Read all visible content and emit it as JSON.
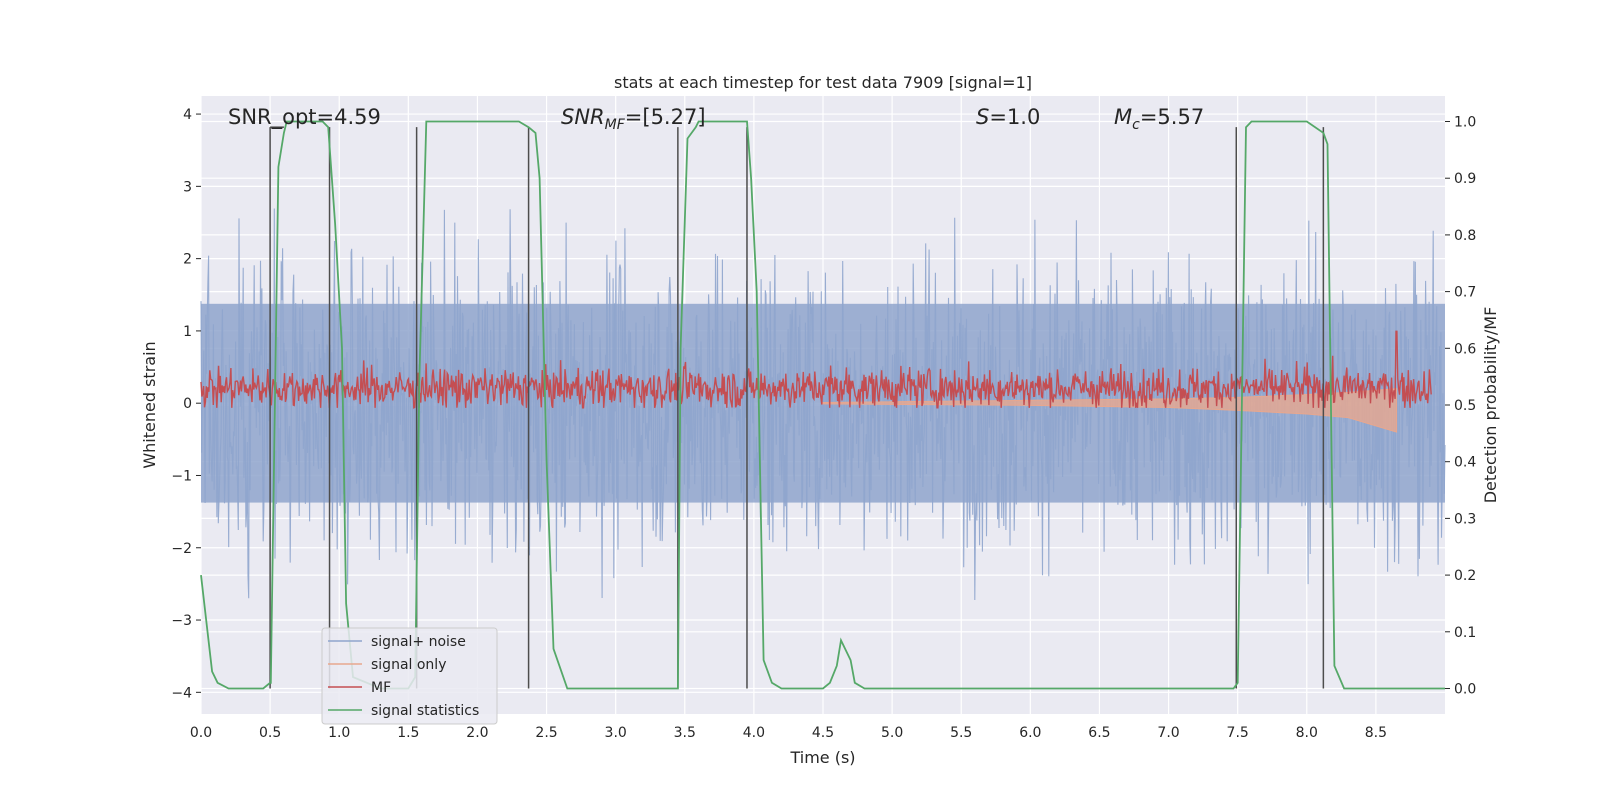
{
  "chart_data": {
    "type": "line",
    "title": "stats at each timestep for test data 7909 [signal=1]",
    "xlabel": "Time (s)",
    "ylabel_left": "Whitened strain",
    "ylabel_right": "Detection probability/MF",
    "xlim": [
      0.0,
      9.0
    ],
    "ylim_left": [
      -4.3,
      4.25
    ],
    "ylim_right": [
      -0.045,
      1.045
    ],
    "x_ticks": [
      "0.0",
      "0.5",
      "1.0",
      "1.5",
      "2.0",
      "2.5",
      "3.0",
      "3.5",
      "4.0",
      "4.5",
      "5.0",
      "5.5",
      "6.0",
      "6.5",
      "7.0",
      "7.5",
      "8.0",
      "8.5"
    ],
    "y_ticks_left": [
      "4",
      "3",
      "2",
      "1",
      "0",
      "−1",
      "−2",
      "−3",
      "−4"
    ],
    "y_ticks_right": [
      "1.0",
      "0.9",
      "0.8",
      "0.7",
      "0.6",
      "0.5",
      "0.4",
      "0.3",
      "0.2",
      "0.1",
      "0.0"
    ],
    "grid": true,
    "legend_position": "lower-left",
    "annotations": {
      "snr_opt": "SNR_opt=4.59",
      "snr_mf": "SNRMF=[5.27]",
      "s_value": "S=1.0",
      "mc_value": "Mc=5.57"
    },
    "series": [
      {
        "name": "signal+ noise",
        "color": "#8fa5cd",
        "noise_band_approx": [
          -2.5,
          2.5
        ],
        "x_range": [
          0.0,
          9.0
        ]
      },
      {
        "name": "signal only",
        "color": "#e8a78e",
        "envelope_approx": {
          "x": [
            4.5,
            6.0,
            7.0,
            7.5,
            8.0,
            8.3,
            8.65
          ],
          "upper": [
            0.01,
            0.04,
            0.06,
            0.08,
            0.12,
            0.15,
            0.2
          ],
          "lower": [
            -0.01,
            -0.03,
            -0.06,
            -0.1,
            -0.15,
            -0.2,
            -0.4
          ]
        }
      },
      {
        "name": "MF",
        "color": "#c44e52",
        "axis": "right",
        "mean_approx": 0.53,
        "band_approx": [
          0.5,
          0.6
        ],
        "peak": {
          "x": 8.65,
          "y": 0.63
        }
      },
      {
        "name": "signal statistics",
        "color": "#55a868",
        "axis": "right",
        "x": [
          0.0,
          0.08,
          0.12,
          0.2,
          0.3,
          0.45,
          0.5,
          0.505,
          0.56,
          0.6,
          0.62,
          0.65,
          0.8,
          0.88,
          0.92,
          0.97,
          1.02,
          1.05,
          1.1,
          1.3,
          1.5,
          1.55,
          1.58,
          1.63,
          1.7,
          2.0,
          2.3,
          2.37,
          2.42,
          2.45,
          2.5,
          2.55,
          2.65,
          3.0,
          3.3,
          3.45,
          3.47,
          3.52,
          3.58,
          3.6,
          3.7,
          3.85,
          3.95,
          3.98,
          4.02,
          4.07,
          4.13,
          4.2,
          4.3,
          4.5,
          4.55,
          4.6,
          4.63,
          4.7,
          4.73,
          4.8,
          5.0,
          6.0,
          7.0,
          7.47,
          7.5,
          7.56,
          7.6,
          7.8,
          8.0,
          8.12,
          8.15,
          8.18,
          8.2,
          8.27,
          9.0
        ],
        "y": [
          0.2,
          0.03,
          0.01,
          0.0,
          0.0,
          0.0,
          0.01,
          0.01,
          0.92,
          0.98,
          1.0,
          1.0,
          1.0,
          1.0,
          0.99,
          0.82,
          0.6,
          0.15,
          0.02,
          0.0,
          0.0,
          0.02,
          0.55,
          1.0,
          1.0,
          1.0,
          1.0,
          0.99,
          0.98,
          0.9,
          0.4,
          0.07,
          0.0,
          0.0,
          0.0,
          0.0,
          0.6,
          0.97,
          0.99,
          1.0,
          1.0,
          1.0,
          1.0,
          0.9,
          0.7,
          0.05,
          0.01,
          0.0,
          0.0,
          0.0,
          0.01,
          0.04,
          0.085,
          0.05,
          0.01,
          0.0,
          0.0,
          0.0,
          0.0,
          0.0,
          0.01,
          0.99,
          1.0,
          1.0,
          1.0,
          0.98,
          0.96,
          0.4,
          0.04,
          0.0,
          0.0
        ]
      },
      {
        "name": "",
        "color": "#4d4d4d",
        "type": "vlines",
        "axis": "right",
        "x": [
          0.5,
          0.93,
          1.56,
          2.37,
          3.45,
          3.95,
          7.49,
          8.12
        ]
      }
    ]
  }
}
